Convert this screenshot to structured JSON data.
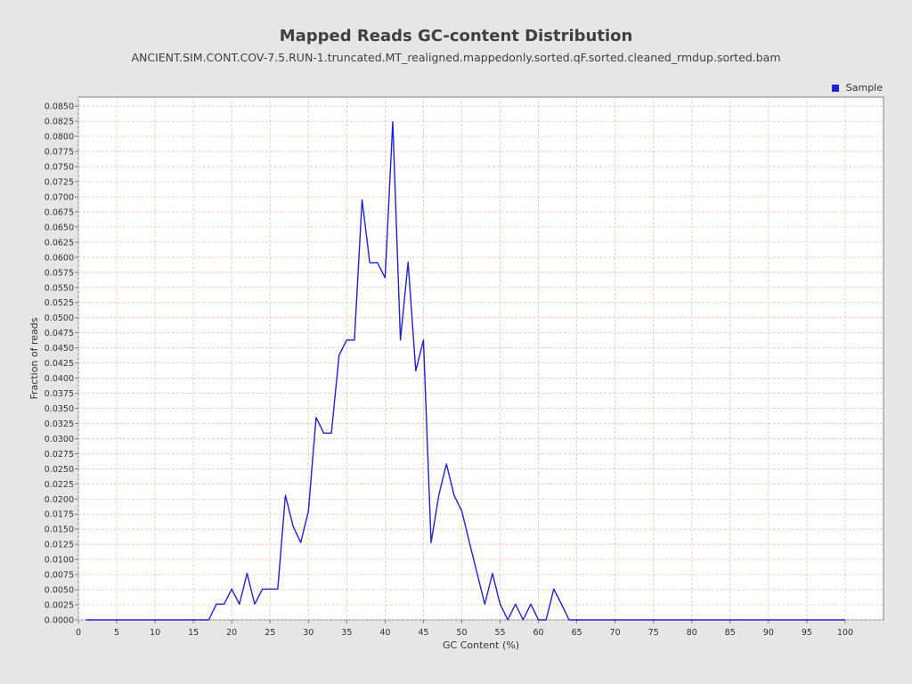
{
  "chart_data": {
    "type": "line",
    "title": "Mapped Reads GC-content Distribution",
    "subtitle": "ANCIENT.SIM.CONT.COV-7.5.RUN-1.truncated.MT_realigned.mappedonly.sorted.qF.sorted.cleaned_rmdup.sorted.bam",
    "xlabel": "GC Content (%)",
    "ylabel": "Fraction of reads",
    "xlim": [
      0,
      105
    ],
    "ylim": [
      0,
      0.0865
    ],
    "x_ticks": [
      0,
      5,
      10,
      15,
      20,
      25,
      30,
      35,
      40,
      45,
      50,
      55,
      60,
      65,
      70,
      75,
      80,
      85,
      90,
      95,
      100
    ],
    "y_ticks": [
      "0.0000",
      "0.0025",
      "0.0050",
      "0.0075",
      "0.0100",
      "0.0125",
      "0.0150",
      "0.0175",
      "0.0200",
      "0.0225",
      "0.0250",
      "0.0275",
      "0.0300",
      "0.0325",
      "0.0350",
      "0.0375",
      "0.0400",
      "0.0425",
      "0.0450",
      "0.0475",
      "0.0500",
      "0.0525",
      "0.0550",
      "0.0575",
      "0.0600",
      "0.0625",
      "0.0650",
      "0.0675",
      "0.0700",
      "0.0725",
      "0.0750",
      "0.0775",
      "0.0800",
      "0.0825",
      "0.0850"
    ],
    "grid": true,
    "legend_position": "top-right",
    "series": [
      {
        "name": "Sample",
        "color": "#1f1fd6",
        "x": [
          1,
          2,
          3,
          4,
          5,
          6,
          7,
          8,
          9,
          10,
          11,
          12,
          13,
          14,
          15,
          16,
          17,
          18,
          19,
          20,
          21,
          22,
          23,
          24,
          25,
          26,
          27,
          28,
          29,
          30,
          31,
          32,
          33,
          34,
          35,
          36,
          37,
          38,
          39,
          40,
          41,
          42,
          43,
          44,
          45,
          46,
          47,
          48,
          49,
          50,
          51,
          52,
          53,
          54,
          55,
          56,
          57,
          58,
          59,
          60,
          61,
          62,
          63,
          64,
          65,
          66,
          67,
          68,
          69,
          70,
          71,
          72,
          73,
          74,
          75,
          76,
          77,
          78,
          79,
          80,
          81,
          82,
          83,
          84,
          85,
          86,
          87,
          88,
          89,
          90,
          91,
          92,
          93,
          94,
          95,
          96,
          97,
          98,
          99,
          100
        ],
        "values": [
          0,
          0,
          0,
          0,
          0,
          0,
          0,
          0,
          0,
          0,
          0,
          0,
          0,
          0,
          0,
          0,
          0,
          0.0026,
          0.0026,
          0.0051,
          0.0026,
          0.0077,
          0.0026,
          0.0051,
          0.0051,
          0.0051,
          0.0206,
          0.0155,
          0.0128,
          0.018,
          0.0335,
          0.0309,
          0.0309,
          0.0438,
          0.0463,
          0.0463,
          0.0695,
          0.0591,
          0.0591,
          0.0566,
          0.0824,
          0.0463,
          0.0592,
          0.0412,
          0.0463,
          0.0128,
          0.0206,
          0.0258,
          0.0206,
          0.018,
          0.0128,
          0.0077,
          0.0026,
          0.0077,
          0.0026,
          0,
          0.0026,
          0,
          0.0026,
          0,
          0,
          0.0051,
          0.0026,
          0,
          0,
          0,
          0,
          0,
          0,
          0,
          0,
          0,
          0,
          0,
          0,
          0,
          0,
          0,
          0,
          0,
          0,
          0,
          0,
          0,
          0,
          0,
          0,
          0,
          0,
          0,
          0,
          0,
          0,
          0,
          0,
          0,
          0,
          0,
          0,
          0
        ]
      }
    ]
  }
}
